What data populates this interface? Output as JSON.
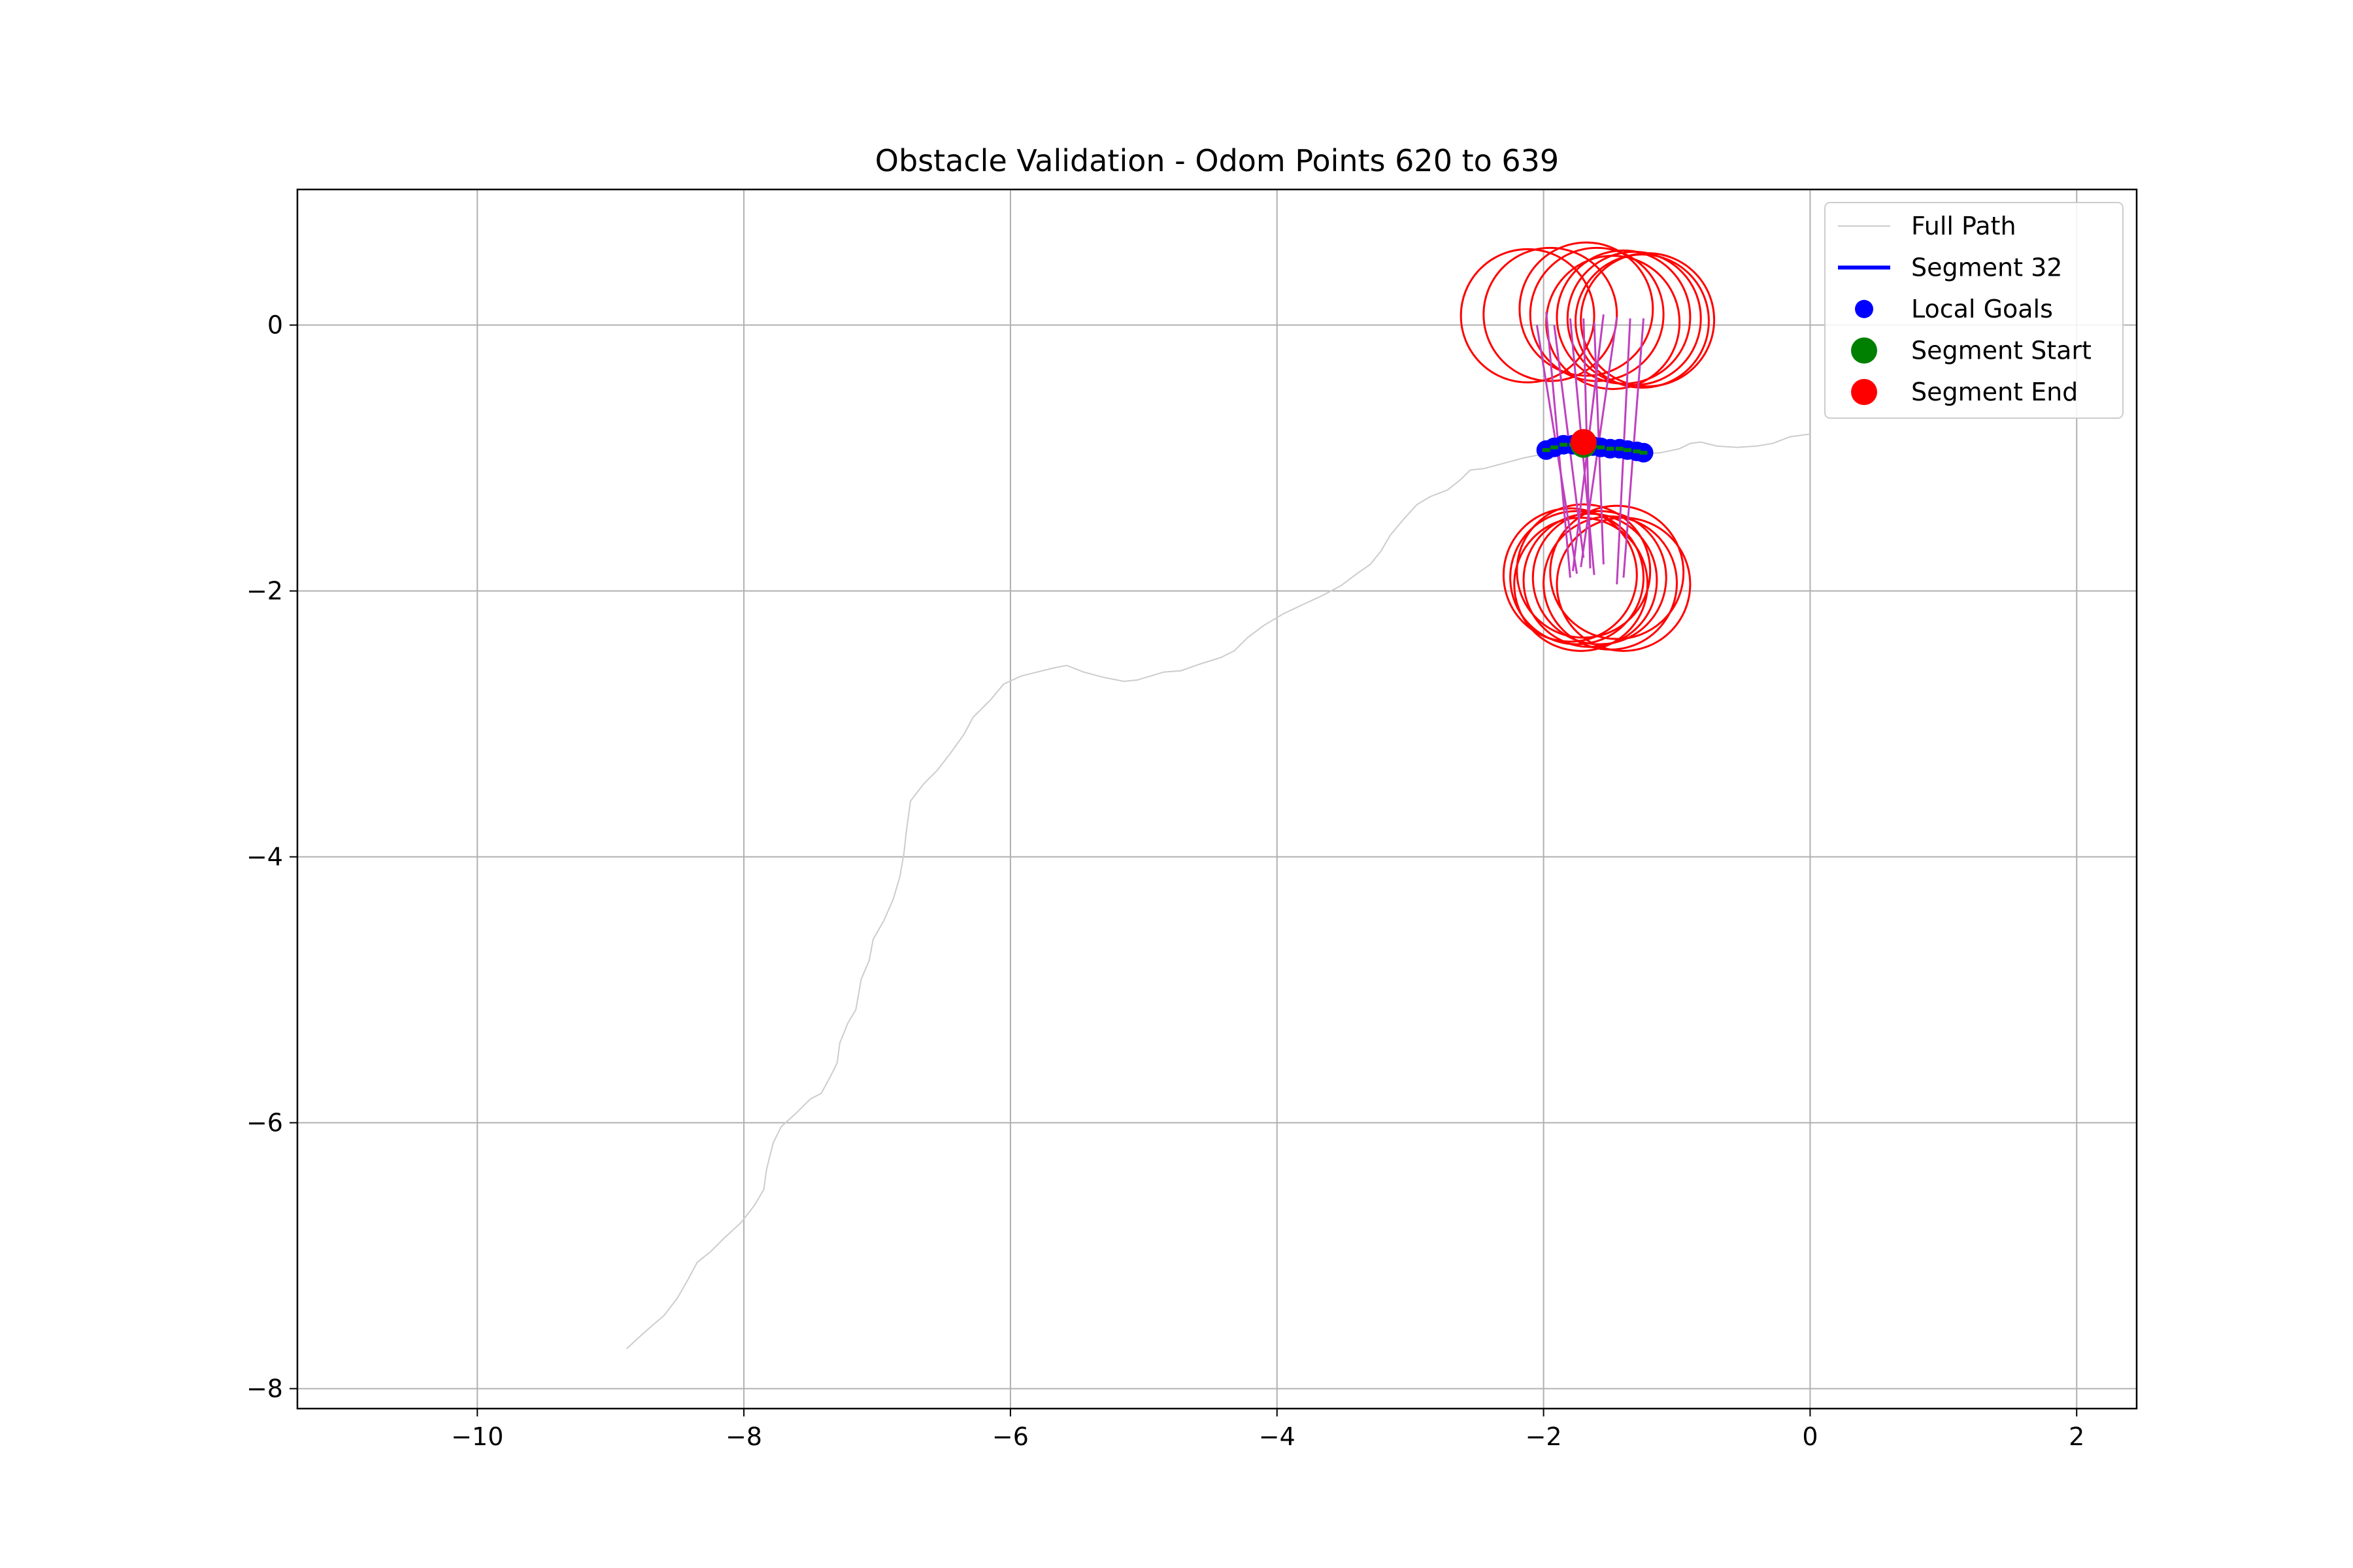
{
  "chart_data": {
    "type": "scatter",
    "title": "Obstacle Validation - Odom Points 620 to 639",
    "xlabel": "",
    "ylabel": "",
    "xlim": [
      -11.35,
      2.45
    ],
    "ylim": [
      -8.15,
      1.02
    ],
    "xticks": [
      -10,
      -8,
      -6,
      -4,
      -2,
      0,
      2
    ],
    "yticks": [
      0,
      -2,
      -4,
      -6,
      -8
    ],
    "xtick_labels": [
      "−10",
      "−8",
      "−6",
      "−4",
      "−2",
      "0",
      "2"
    ],
    "ytick_labels": [
      "0",
      "−2",
      "−4",
      "−6",
      "−8"
    ],
    "grid": true,
    "legend_position": "top-right",
    "colors": {
      "full_path": "#cccccc",
      "segment": "#0000ff",
      "local_goals": "#0000ff",
      "segment_start": "#008000",
      "segment_end": "#ff0000",
      "obstacle_circles": "#ff0000",
      "rays": "#bf40bf"
    },
    "legend": [
      {
        "label": "Full Path",
        "kind": "line-thin",
        "color": "#cccccc"
      },
      {
        "label": "Segment 32",
        "kind": "line-thick",
        "color": "#0000ff"
      },
      {
        "label": "Local Goals",
        "kind": "dot-small",
        "color": "#0000ff"
      },
      {
        "label": "Segment Start",
        "kind": "dot-large",
        "color": "#008000"
      },
      {
        "label": "Segment End",
        "kind": "dot-large",
        "color": "#ff0000"
      }
    ],
    "full_path": [
      [
        -8.88,
        -7.7
      ],
      [
        -8.75,
        -7.58
      ],
      [
        -8.6,
        -7.45
      ],
      [
        -8.5,
        -7.32
      ],
      [
        -8.42,
        -7.18
      ],
      [
        -8.35,
        -7.05
      ],
      [
        -8.25,
        -6.97
      ],
      [
        -8.15,
        -6.87
      ],
      [
        -8.02,
        -6.75
      ],
      [
        -7.92,
        -6.62
      ],
      [
        -7.85,
        -6.5
      ],
      [
        -7.83,
        -6.35
      ],
      [
        -7.78,
        -6.15
      ],
      [
        -7.72,
        -6.03
      ],
      [
        -7.6,
        -5.92
      ],
      [
        -7.5,
        -5.82
      ],
      [
        -7.42,
        -5.78
      ],
      [
        -7.35,
        -5.65
      ],
      [
        -7.3,
        -5.55
      ],
      [
        -7.28,
        -5.4
      ],
      [
        -7.22,
        -5.25
      ],
      [
        -7.16,
        -5.15
      ],
      [
        -7.12,
        -4.92
      ],
      [
        -7.06,
        -4.78
      ],
      [
        -7.03,
        -4.62
      ],
      [
        -6.95,
        -4.48
      ],
      [
        -6.88,
        -4.32
      ],
      [
        -6.83,
        -4.15
      ],
      [
        -6.8,
        -3.98
      ],
      [
        -6.78,
        -3.8
      ],
      [
        -6.75,
        -3.58
      ],
      [
        -6.65,
        -3.45
      ],
      [
        -6.55,
        -3.35
      ],
      [
        -6.45,
        -3.22
      ],
      [
        -6.35,
        -3.08
      ],
      [
        -6.28,
        -2.95
      ],
      [
        -6.15,
        -2.82
      ],
      [
        -6.05,
        -2.7
      ],
      [
        -5.92,
        -2.64
      ],
      [
        -5.8,
        -2.61
      ],
      [
        -5.68,
        -2.58
      ],
      [
        -5.58,
        -2.56
      ],
      [
        -5.45,
        -2.61
      ],
      [
        -5.3,
        -2.65
      ],
      [
        -5.15,
        -2.68
      ],
      [
        -5.05,
        -2.67
      ],
      [
        -4.95,
        -2.64
      ],
      [
        -4.85,
        -2.61
      ],
      [
        -4.72,
        -2.6
      ],
      [
        -4.58,
        -2.55
      ],
      [
        -4.42,
        -2.5
      ],
      [
        -4.32,
        -2.45
      ],
      [
        -4.22,
        -2.35
      ],
      [
        -4.1,
        -2.26
      ],
      [
        -3.95,
        -2.17
      ],
      [
        -3.8,
        -2.1
      ],
      [
        -3.65,
        -2.03
      ],
      [
        -3.52,
        -1.96
      ],
      [
        -3.4,
        -1.87
      ],
      [
        -3.3,
        -1.8
      ],
      [
        -3.22,
        -1.7
      ],
      [
        -3.15,
        -1.58
      ],
      [
        -3.05,
        -1.46
      ],
      [
        -2.95,
        -1.35
      ],
      [
        -2.85,
        -1.29
      ],
      [
        -2.72,
        -1.24
      ],
      [
        -2.62,
        -1.16
      ],
      [
        -2.55,
        -1.09
      ],
      [
        -2.45,
        -1.08
      ],
      [
        -2.3,
        -1.04
      ],
      [
        -2.15,
        -1.0
      ],
      [
        -2.0,
        -0.97
      ],
      [
        -1.88,
        -0.94
      ],
      [
        -1.75,
        -0.92
      ],
      [
        -1.62,
        -0.93
      ],
      [
        -1.5,
        -0.94
      ],
      [
        -1.35,
        -0.96
      ],
      [
        -1.25,
        -0.97
      ],
      [
        -1.12,
        -0.96
      ],
      [
        -0.98,
        -0.93
      ],
      [
        -0.9,
        -0.89
      ],
      [
        -0.82,
        -0.88
      ],
      [
        -0.7,
        -0.91
      ],
      [
        -0.55,
        -0.92
      ],
      [
        -0.4,
        -0.91
      ],
      [
        -0.28,
        -0.89
      ],
      [
        -0.15,
        -0.84
      ],
      [
        0.0,
        -0.82
      ]
    ],
    "local_goals": [
      {
        "x": -1.98,
        "y": -0.94
      },
      {
        "x": -1.92,
        "y": -0.92
      },
      {
        "x": -1.85,
        "y": -0.9
      },
      {
        "x": -1.78,
        "y": -0.9
      },
      {
        "x": -1.7,
        "y": -0.9
      },
      {
        "x": -1.63,
        "y": -0.91
      },
      {
        "x": -1.57,
        "y": -0.92
      },
      {
        "x": -1.5,
        "y": -0.93
      },
      {
        "x": -1.43,
        "y": -0.93
      },
      {
        "x": -1.37,
        "y": -0.94
      },
      {
        "x": -1.3,
        "y": -0.95
      },
      {
        "x": -1.25,
        "y": -0.96
      }
    ],
    "segment_start": {
      "x": -1.7,
      "y": -0.9
    },
    "segment_end": {
      "x": -1.7,
      "y": -0.88
    },
    "rays": [
      [
        -1.98,
        0.1,
        -1.8,
        -1.9
      ],
      [
        -2.05,
        0.0,
        -1.75,
        -1.87
      ],
      [
        -1.8,
        0.05,
        -1.62,
        -1.88
      ],
      [
        -1.7,
        0.05,
        -1.65,
        -1.83
      ],
      [
        -1.55,
        0.08,
        -1.78,
        -1.85
      ],
      [
        -1.45,
        0.06,
        -1.72,
        -1.82
      ],
      [
        -1.35,
        0.05,
        -1.45,
        -1.95
      ],
      [
        -1.25,
        0.05,
        -1.4,
        -1.9
      ],
      [
        -1.92,
        0.0,
        -1.7,
        -1.75
      ],
      [
        -1.62,
        0.02,
        -1.55,
        -1.8
      ]
    ],
    "obstacle_circles": [
      {
        "x": -2.12,
        "y": 0.07,
        "r": 0.5
      },
      {
        "x": -1.95,
        "y": 0.08,
        "r": 0.5
      },
      {
        "x": -1.68,
        "y": 0.12,
        "r": 0.5
      },
      {
        "x": -1.4,
        "y": 0.06,
        "r": 0.5
      },
      {
        "x": -1.32,
        "y": 0.05,
        "r": 0.5
      },
      {
        "x": -1.26,
        "y": 0.03,
        "r": 0.5
      },
      {
        "x": -1.22,
        "y": 0.04,
        "r": 0.5
      },
      {
        "x": -1.48,
        "y": 0.02,
        "r": 0.5
      },
      {
        "x": -1.6,
        "y": 0.08,
        "r": 0.5
      },
      {
        "x": -1.8,
        "y": -1.88,
        "r": 0.5
      },
      {
        "x": -1.75,
        "y": -1.9,
        "r": 0.5
      },
      {
        "x": -1.7,
        "y": -1.85,
        "r": 0.5
      },
      {
        "x": -1.65,
        "y": -1.92,
        "r": 0.5
      },
      {
        "x": -1.58,
        "y": -1.9,
        "r": 0.5
      },
      {
        "x": -1.5,
        "y": -1.94,
        "r": 0.5
      },
      {
        "x": -1.4,
        "y": -1.95,
        "r": 0.5
      },
      {
        "x": -1.45,
        "y": -1.86,
        "r": 0.5
      },
      {
        "x": -1.72,
        "y": -1.95,
        "r": 0.5
      }
    ]
  }
}
